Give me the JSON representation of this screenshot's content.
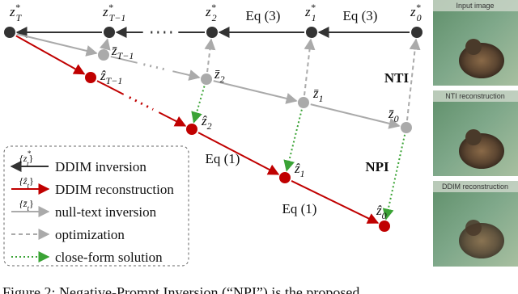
{
  "nodes": [
    {
      "symbol": "z",
      "sup": "*",
      "sub": "T"
    },
    {
      "symbol": "z",
      "sup": "*",
      "sub": "T−1"
    },
    {
      "symbol": "z",
      "sup": "*",
      "sub": "2"
    },
    {
      "symbol": "z",
      "sup": "*",
      "sub": "1"
    },
    {
      "symbol": "z",
      "sup": "*",
      "sub": "0"
    },
    {
      "symbol": "z̄",
      "sub": "T−1"
    },
    {
      "symbol": "z̄",
      "sub": "2"
    },
    {
      "symbol": "z̄",
      "sub": "1"
    },
    {
      "symbol": "z̄",
      "sub": "0"
    },
    {
      "symbol": "ẑ",
      "sub": "T−1"
    },
    {
      "symbol": "ẑ",
      "sub": "2"
    },
    {
      "symbol": "ẑ",
      "sub": "1"
    },
    {
      "symbol": "ẑ",
      "sub": "0"
    }
  ],
  "edge_labels": [
    "Eq (3)",
    "Eq (3)",
    "Eq (1)",
    "Eq (1)"
  ],
  "methods": [
    "NTI",
    "NPI"
  ],
  "legend": [
    {
      "symbol": "{z",
      "sup": "*",
      "sub": "t",
      "close": "}",
      "text": "DDIM inversion"
    },
    {
      "symbol": "{ẑ",
      "sub": "t",
      "close": "}",
      "text": "DDIM reconstruction"
    },
    {
      "symbol": "{z̄",
      "sub": "t",
      "close": "}",
      "text": "null-text inversion"
    },
    {
      "text": "optimization"
    },
    {
      "text": "close-form solution"
    }
  ],
  "images": [
    {
      "label": "Input image"
    },
    {
      "label": "NTI reconstruction"
    },
    {
      "label": "DDIM reconstruction"
    }
  ],
  "caption": "Figure 2: Negative-Prompt Inversion (“NPI”) is the proposed"
}
